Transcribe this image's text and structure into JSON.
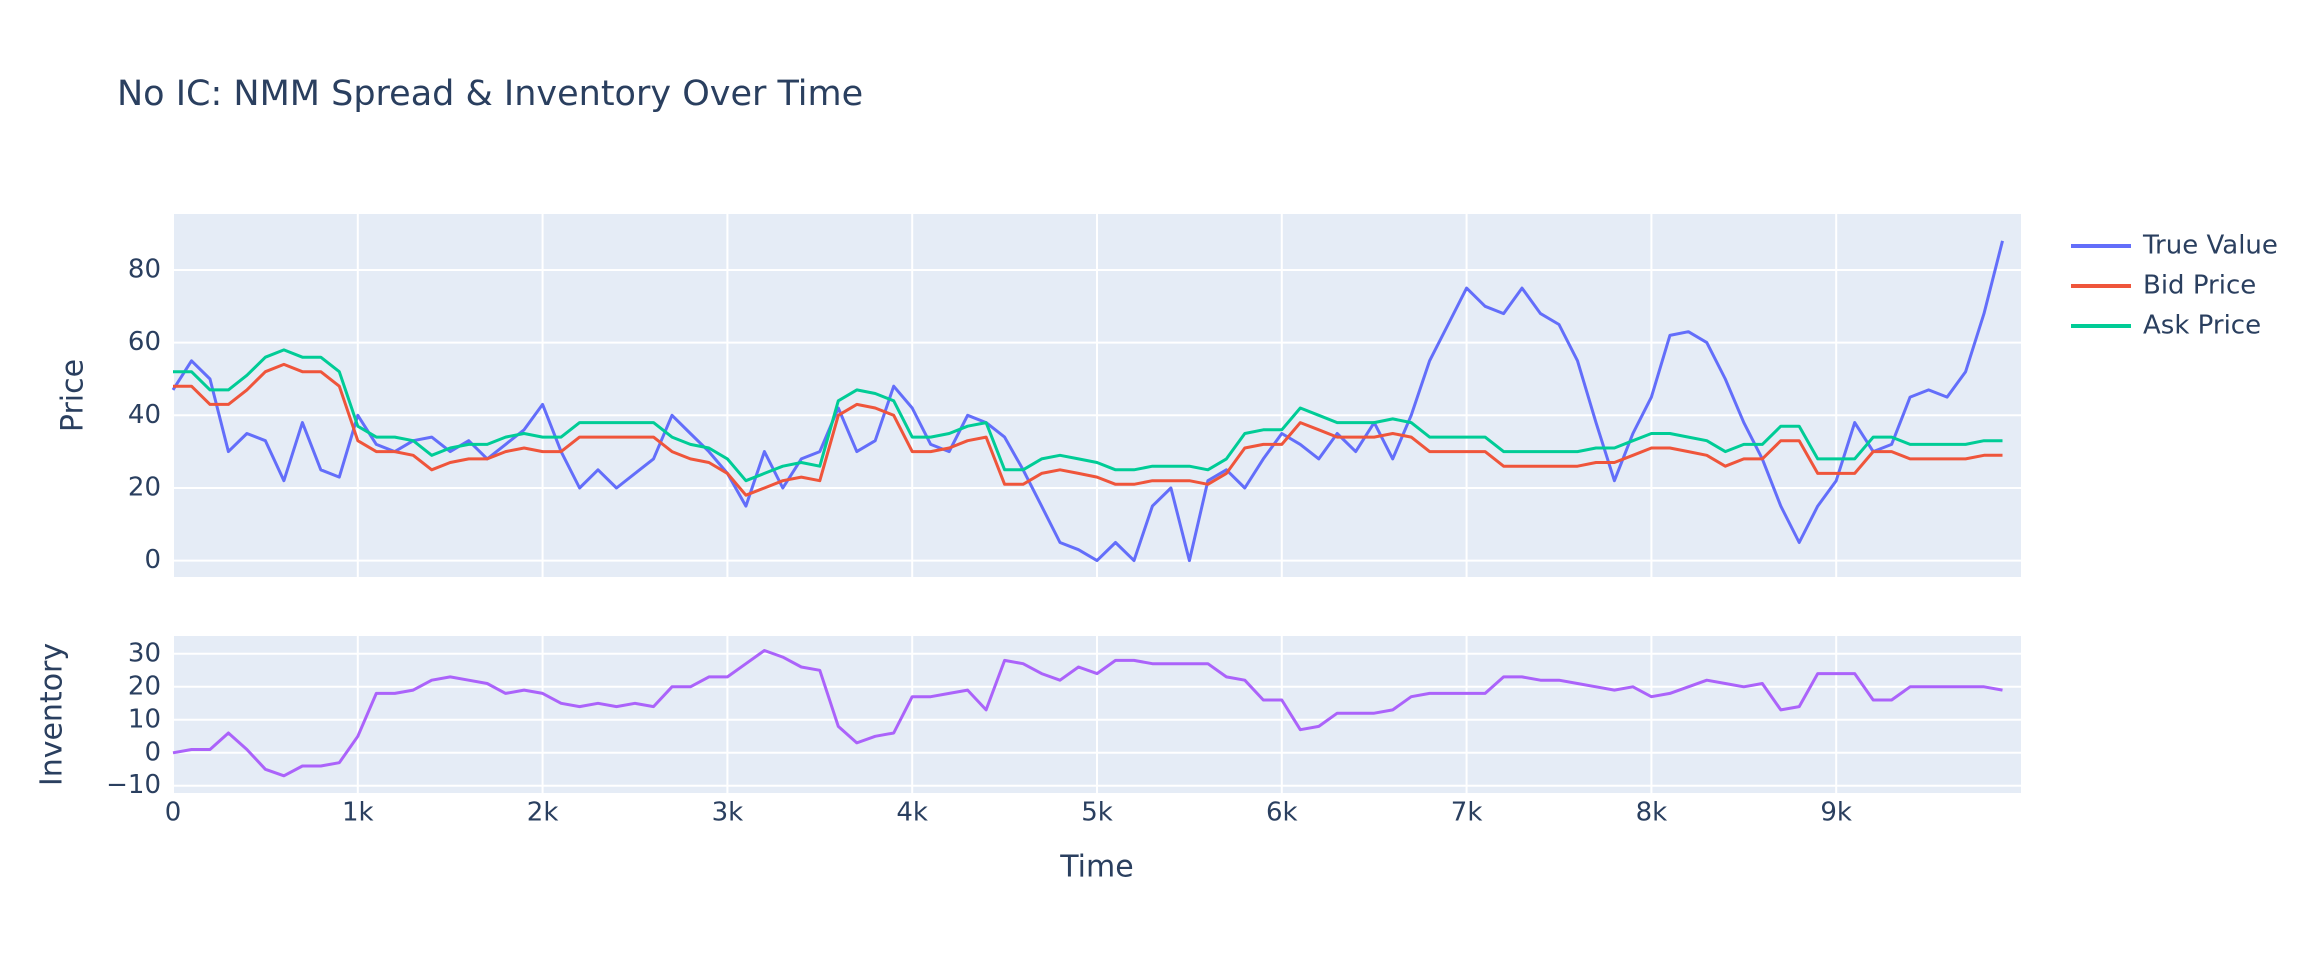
{
  "chart_data": [
    {
      "type": "line",
      "title": "No IC: NMM Spread & Inventory Over Time",
      "y_label": "Price",
      "x": [
        0,
        100,
        200,
        300,
        400,
        500,
        600,
        700,
        800,
        900,
        1000,
        1100,
        1200,
        1300,
        1400,
        1500,
        1600,
        1700,
        1800,
        1900,
        2000,
        2100,
        2200,
        2300,
        2400,
        2500,
        2600,
        2700,
        2800,
        2900,
        3000,
        3100,
        3200,
        3300,
        3400,
        3500,
        3600,
        3700,
        3800,
        3900,
        4000,
        4100,
        4200,
        4300,
        4400,
        4500,
        4600,
        4700,
        4800,
        4900,
        5000,
        5100,
        5200,
        5300,
        5400,
        5500,
        5600,
        5700,
        5800,
        5900,
        6000,
        6100,
        6200,
        6300,
        6400,
        6500,
        6600,
        6700,
        6800,
        6900,
        7000,
        7100,
        7200,
        7300,
        7400,
        7500,
        7600,
        7700,
        7800,
        7900,
        8000,
        8100,
        8200,
        8300,
        8400,
        8500,
        8600,
        8700,
        8800,
        8900,
        9000,
        9100,
        9200,
        9300,
        9400,
        9500,
        9600,
        9700,
        9800,
        9900
      ],
      "series": [
        {
          "name": "True Value",
          "color": "#636efa",
          "values": [
            47,
            55,
            50,
            30,
            35,
            33,
            22,
            38,
            25,
            23,
            40,
            32,
            30,
            33,
            34,
            30,
            33,
            28,
            32,
            36,
            43,
            30,
            20,
            25,
            20,
            24,
            28,
            40,
            35,
            30,
            24,
            15,
            30,
            20,
            28,
            30,
            42,
            30,
            33,
            48,
            42,
            32,
            30,
            40,
            38,
            34,
            25,
            15,
            5,
            3,
            0,
            5,
            0,
            15,
            20,
            0,
            22,
            25,
            20,
            28,
            35,
            32,
            28,
            35,
            30,
            38,
            28,
            40,
            55,
            65,
            75,
            70,
            68,
            75,
            68,
            65,
            55,
            38,
            22,
            35,
            45,
            62,
            63,
            60,
            50,
            38,
            28,
            15,
            5,
            15,
            22,
            38,
            30,
            32,
            45,
            47,
            45,
            52,
            68,
            88
          ]
        },
        {
          "name": "Bid Price",
          "color": "#ef553b",
          "values": [
            48,
            48,
            43,
            43,
            47,
            52,
            54,
            52,
            52,
            48,
            33,
            30,
            30,
            29,
            25,
            27,
            28,
            28,
            30,
            31,
            30,
            30,
            34,
            34,
            34,
            34,
            34,
            30,
            28,
            27,
            24,
            18,
            20,
            22,
            23,
            22,
            40,
            43,
            42,
            40,
            30,
            30,
            31,
            33,
            34,
            21,
            21,
            24,
            25,
            24,
            23,
            21,
            21,
            22,
            22,
            22,
            21,
            24,
            31,
            32,
            32,
            38,
            36,
            34,
            34,
            34,
            35,
            34,
            30,
            30,
            30,
            30,
            26,
            26,
            26,
            26,
            26,
            27,
            27,
            29,
            31,
            31,
            30,
            29,
            26,
            28,
            28,
            33,
            33,
            24,
            24,
            24,
            30,
            30,
            28,
            28,
            28,
            28,
            29,
            29
          ]
        },
        {
          "name": "Ask Price",
          "color": "#00cc96",
          "values": [
            52,
            52,
            47,
            47,
            51,
            56,
            58,
            56,
            56,
            52,
            37,
            34,
            34,
            33,
            29,
            31,
            32,
            32,
            34,
            35,
            34,
            34,
            38,
            38,
            38,
            38,
            38,
            34,
            32,
            31,
            28,
            22,
            24,
            26,
            27,
            26,
            44,
            47,
            46,
            44,
            34,
            34,
            35,
            37,
            38,
            25,
            25,
            28,
            29,
            28,
            27,
            25,
            25,
            26,
            26,
            26,
            25,
            28,
            35,
            36,
            36,
            42,
            40,
            38,
            38,
            38,
            39,
            38,
            34,
            34,
            34,
            34,
            30,
            30,
            30,
            30,
            30,
            31,
            31,
            33,
            35,
            35,
            34,
            33,
            30,
            32,
            32,
            37,
            37,
            28,
            28,
            28,
            34,
            34,
            32,
            32,
            32,
            32,
            33,
            33
          ]
        }
      ],
      "xlim": [
        0,
        10000
      ],
      "xticks": [
        0,
        1000,
        2000,
        3000,
        4000,
        5000,
        6000,
        7000,
        8000,
        9000
      ],
      "ylim": [
        -4.5,
        95.4
      ],
      "yticks": [
        0,
        20,
        40,
        60,
        80
      ],
      "grid": true,
      "legend": "outside-right"
    },
    {
      "type": "line",
      "y_label": "Inventory",
      "x_label": "Time",
      "x": [
        0,
        100,
        200,
        300,
        400,
        500,
        600,
        700,
        800,
        900,
        1000,
        1100,
        1200,
        1300,
        1400,
        1500,
        1600,
        1700,
        1800,
        1900,
        2000,
        2100,
        2200,
        2300,
        2400,
        2500,
        2600,
        2700,
        2800,
        2900,
        3000,
        3100,
        3200,
        3300,
        3400,
        3500,
        3600,
        3700,
        3800,
        3900,
        4000,
        4100,
        4200,
        4300,
        4400,
        4500,
        4600,
        4700,
        4800,
        4900,
        5000,
        5100,
        5200,
        5300,
        5400,
        5500,
        5600,
        5700,
        5800,
        5900,
        6000,
        6100,
        6200,
        6300,
        6400,
        6500,
        6600,
        6700,
        6800,
        6900,
        7000,
        7100,
        7200,
        7300,
        7400,
        7500,
        7600,
        7700,
        7800,
        7900,
        8000,
        8100,
        8200,
        8300,
        8400,
        8500,
        8600,
        8700,
        8800,
        8900,
        9000,
        9100,
        9200,
        9300,
        9400,
        9500,
        9600,
        9700,
        9800,
        9900
      ],
      "color": "#ab63fa",
      "values": [
        0,
        1,
        1,
        6,
        1,
        -5,
        -7,
        -4,
        -4,
        -3,
        5,
        18,
        18,
        19,
        22,
        23,
        22,
        21,
        18,
        19,
        18,
        15,
        14,
        15,
        14,
        15,
        14,
        20,
        20,
        23,
        23,
        27,
        31,
        29,
        26,
        25,
        8,
        3,
        5,
        6,
        17,
        17,
        18,
        19,
        13,
        28,
        27,
        24,
        22,
        26,
        24,
        28,
        28,
        27,
        27,
        27,
        27,
        23,
        22,
        16,
        16,
        7,
        8,
        12,
        12,
        12,
        13,
        17,
        18,
        18,
        18,
        18,
        23,
        23,
        22,
        22,
        21,
        20,
        19,
        20,
        17,
        18,
        20,
        22,
        21,
        20,
        21,
        13,
        14,
        24,
        24,
        24,
        16,
        16,
        20,
        20,
        20,
        20,
        20,
        19
      ],
      "xlim": [
        0,
        10000
      ],
      "xticks": [
        0,
        {
          "value": 1000,
          "label": "1k"
        },
        {
          "value": 2000,
          "label": "2k"
        },
        {
          "value": 3000,
          "label": "3k"
        },
        {
          "value": 4000,
          "label": "4k"
        },
        {
          "value": 5000,
          "label": "5k"
        },
        {
          "value": 6000,
          "label": "6k"
        },
        {
          "value": 7000,
          "label": "7k"
        },
        {
          "value": 8000,
          "label": "8k"
        },
        {
          "value": 9000,
          "label": "9k"
        }
      ],
      "ylim": [
        -12.2,
        35.4
      ],
      "yticks": [
        {
          "value": -10,
          "label": "−10"
        },
        0,
        10,
        20,
        30
      ],
      "grid": true
    }
  ]
}
